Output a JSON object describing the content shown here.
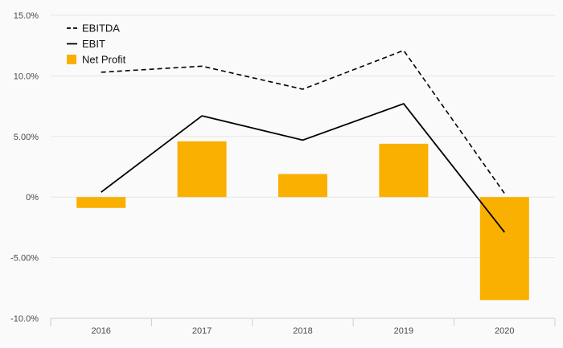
{
  "chart_data": {
    "type": "bar",
    "categories": [
      "2016",
      "2017",
      "2018",
      "2019",
      "2020"
    ],
    "series": [
      {
        "name": "EBITDA",
        "kind": "line",
        "style": "dashed",
        "color": "#000000",
        "values": [
          10.3,
          10.8,
          8.9,
          12.1,
          0.3
        ]
      },
      {
        "name": "EBIT",
        "kind": "line",
        "style": "solid",
        "color": "#000000",
        "values": [
          0.4,
          6.7,
          4.7,
          7.7,
          -2.9
        ]
      },
      {
        "name": "Net Profit",
        "kind": "bar",
        "color": "#f9b000",
        "values": [
          -0.9,
          4.6,
          1.9,
          4.4,
          -8.5
        ]
      }
    ],
    "y_ticks": [
      "15.0%",
      "10.0%",
      "5.00%",
      "0%",
      "-5.00%",
      "-10.0%"
    ],
    "y_tick_values": [
      15,
      10,
      5,
      0,
      -5,
      -10
    ],
    "ylim": [
      -10,
      15
    ],
    "grid": true,
    "legend_position": "top-left",
    "title": "",
    "xlabel": "",
    "ylabel": ""
  }
}
